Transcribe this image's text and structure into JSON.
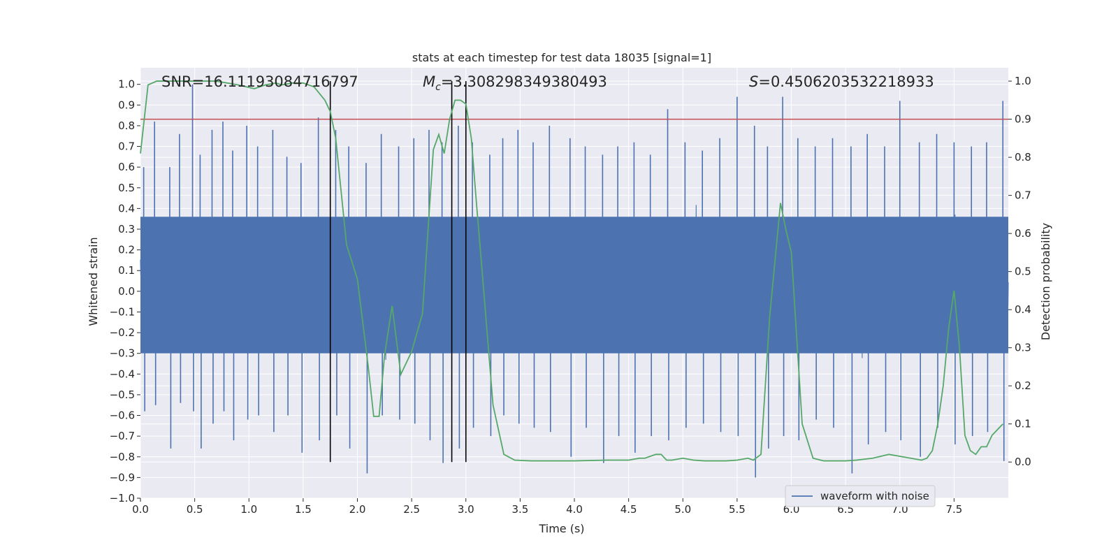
{
  "chart_data": {
    "type": "line",
    "title": "stats at each timestep for test data 18035 [signal=1]",
    "xlabel": "Time (s)",
    "ylabel": "Whitened strain",
    "ylabel_right": "Detection probability",
    "xlim": [
      0.0,
      8.0
    ],
    "ylim": [
      -1.0,
      1.08
    ],
    "ylim_right": [
      -0.095,
      1.035
    ],
    "x_ticks": [
      "0.0",
      "0.5",
      "1.0",
      "1.5",
      "2.0",
      "2.5",
      "3.0",
      "3.5",
      "4.0",
      "4.5",
      "5.0",
      "5.5",
      "6.0",
      "6.5",
      "7.0",
      "7.5"
    ],
    "y_ticks": [
      "1.0",
      "0.9",
      "0.8",
      "0.7",
      "0.6",
      "0.5",
      "0.4",
      "0.3",
      "0.2",
      "0.1",
      "0.0",
      "-0.1",
      "-0.2",
      "-0.3",
      "-0.4",
      "-0.5",
      "-0.6",
      "-0.7",
      "-0.8",
      "-0.9",
      "-1.0"
    ],
    "y_ticks_right": [
      "1.0",
      "0.9",
      "0.8",
      "0.7",
      "0.6",
      "0.5",
      "0.4",
      "0.3",
      "0.2",
      "0.1",
      "0.0"
    ],
    "annotations": {
      "snr": "SNR=16.11193084716797",
      "mc_symbol": "M",
      "mc_subscript": "c",
      "mc_value": "=3.308298349380493",
      "s_symbol": "S",
      "s_value": "=0.4506203532218933"
    },
    "threshold_line": {
      "y_right": 0.9,
      "color": "#c44e52"
    },
    "vertical_markers": [
      1.75,
      2.87,
      3.0
    ],
    "series": [
      {
        "name": "waveform with noise",
        "color": "#4c72b0",
        "axis": "left",
        "note": "dense noisy strain, approx. between -0.9 and 1.0 over 0-8 s",
        "peaks": [
          {
            "x": 0.03,
            "top": 0.6,
            "bottom": -0.58
          },
          {
            "x": 0.13,
            "top": 0.82,
            "bottom": -0.55
          },
          {
            "x": 0.27,
            "top": 0.6,
            "bottom": -0.76
          },
          {
            "x": 0.36,
            "top": 0.76,
            "bottom": -0.54
          },
          {
            "x": 0.48,
            "top": 1.0,
            "bottom": -0.58
          },
          {
            "x": 0.55,
            "top": 0.66,
            "bottom": -0.76
          },
          {
            "x": 0.66,
            "top": 0.78,
            "bottom": -0.64
          },
          {
            "x": 0.76,
            "top": 0.82,
            "bottom": -0.58
          },
          {
            "x": 0.85,
            "top": 0.68,
            "bottom": -0.72
          },
          {
            "x": 0.98,
            "top": 0.8,
            "bottom": -0.62
          },
          {
            "x": 1.08,
            "top": 0.7,
            "bottom": -0.6
          },
          {
            "x": 1.22,
            "top": 0.78,
            "bottom": -0.68
          },
          {
            "x": 1.35,
            "top": 0.65,
            "bottom": -0.6
          },
          {
            "x": 1.48,
            "top": 0.62,
            "bottom": -0.78
          },
          {
            "x": 1.64,
            "top": 0.84,
            "bottom": -0.72
          },
          {
            "x": 1.8,
            "top": 0.78,
            "bottom": -0.6
          },
          {
            "x": 1.92,
            "top": 0.7,
            "bottom": -0.76
          },
          {
            "x": 2.08,
            "top": 0.62,
            "bottom": -0.88
          },
          {
            "x": 2.22,
            "top": 0.76,
            "bottom": -0.6
          },
          {
            "x": 2.38,
            "top": 0.7,
            "bottom": -0.62
          },
          {
            "x": 2.52,
            "top": 0.74,
            "bottom": -0.64
          },
          {
            "x": 2.66,
            "top": 0.78,
            "bottom": -0.72
          },
          {
            "x": 2.78,
            "top": 0.72,
            "bottom": -0.83
          },
          {
            "x": 2.93,
            "top": 0.8,
            "bottom": -0.76
          },
          {
            "x": 3.06,
            "top": 0.72,
            "bottom": -0.66
          },
          {
            "x": 3.22,
            "top": 0.66,
            "bottom": -0.7
          },
          {
            "x": 3.34,
            "top": 0.74,
            "bottom": -0.6
          },
          {
            "x": 3.48,
            "top": 0.78,
            "bottom": -0.64
          },
          {
            "x": 3.62,
            "top": 0.72,
            "bottom": -0.66
          },
          {
            "x": 3.77,
            "top": 0.8,
            "bottom": -0.68
          },
          {
            "x": 3.96,
            "top": 0.74,
            "bottom": -0.8
          },
          {
            "x": 4.1,
            "top": 0.7,
            "bottom": -0.66
          },
          {
            "x": 4.26,
            "top": 0.66,
            "bottom": -0.83
          },
          {
            "x": 4.4,
            "top": 0.7,
            "bottom": -0.7
          },
          {
            "x": 4.55,
            "top": 0.72,
            "bottom": -0.78
          },
          {
            "x": 4.7,
            "top": 0.66,
            "bottom": -0.7
          },
          {
            "x": 4.86,
            "top": 0.88,
            "bottom": -0.72
          },
          {
            "x": 5.02,
            "top": 0.72,
            "bottom": -0.66
          },
          {
            "x": 5.18,
            "top": 0.68,
            "bottom": -0.64
          },
          {
            "x": 5.34,
            "top": 0.74,
            "bottom": -0.68
          },
          {
            "x": 5.5,
            "top": 0.94,
            "bottom": -0.7
          },
          {
            "x": 5.66,
            "top": 0.8,
            "bottom": -0.9
          },
          {
            "x": 5.78,
            "top": 0.7,
            "bottom": -0.76
          },
          {
            "x": 5.92,
            "top": 0.94,
            "bottom": -0.7
          },
          {
            "x": 6.06,
            "top": 0.74,
            "bottom": -0.72
          },
          {
            "x": 6.22,
            "top": 0.7,
            "bottom": -0.62
          },
          {
            "x": 6.38,
            "top": 0.74,
            "bottom": -0.66
          },
          {
            "x": 6.55,
            "top": 0.7,
            "bottom": -0.88
          },
          {
            "x": 6.7,
            "top": 0.76,
            "bottom": -0.74
          },
          {
            "x": 6.86,
            "top": 0.7,
            "bottom": -0.68
          },
          {
            "x": 7.0,
            "top": 0.92,
            "bottom": -0.72
          },
          {
            "x": 7.18,
            "top": 0.72,
            "bottom": -0.8
          },
          {
            "x": 7.34,
            "top": 0.76,
            "bottom": -0.66
          },
          {
            "x": 7.5,
            "top": 0.72,
            "bottom": -0.74
          },
          {
            "x": 7.66,
            "top": 0.7,
            "bottom": -0.7
          },
          {
            "x": 7.8,
            "top": 0.72,
            "bottom": -0.68
          },
          {
            "x": 7.95,
            "top": 0.92,
            "bottom": -0.82
          }
        ]
      },
      {
        "name": "detection probability",
        "color": "#55a868",
        "axis": "right",
        "x": [
          0.0,
          0.07,
          0.15,
          0.3,
          0.5,
          0.7,
          0.8,
          0.9,
          1.05,
          1.15,
          1.25,
          1.3,
          1.4,
          1.5,
          1.6,
          1.7,
          1.75,
          1.8,
          1.9,
          2.0,
          2.1,
          2.15,
          2.2,
          2.25,
          2.32,
          2.4,
          2.5,
          2.6,
          2.7,
          2.75,
          2.8,
          2.85,
          2.9,
          2.95,
          3.0,
          3.05,
          3.1,
          3.15,
          3.25,
          3.35,
          3.45,
          3.6,
          3.8,
          4.0,
          4.3,
          4.5,
          4.6,
          4.65,
          4.75,
          4.8,
          4.85,
          4.9,
          5.0,
          5.1,
          5.2,
          5.4,
          5.5,
          5.6,
          5.65,
          5.72,
          5.8,
          5.9,
          5.95,
          6.0,
          6.1,
          6.2,
          6.3,
          6.5,
          6.6,
          6.75,
          6.9,
          7.0,
          7.1,
          7.2,
          7.25,
          7.3,
          7.35,
          7.4,
          7.45,
          7.5,
          7.55,
          7.6,
          7.65,
          7.7,
          7.75,
          7.8,
          7.85,
          7.95
        ],
        "y": [
          0.81,
          0.99,
          1.0,
          1.0,
          1.0,
          1.0,
          0.995,
          0.99,
          0.98,
          0.99,
          0.995,
          0.99,
          0.995,
          0.995,
          0.985,
          0.95,
          0.92,
          0.85,
          0.57,
          0.48,
          0.25,
          0.12,
          0.12,
          0.28,
          0.41,
          0.23,
          0.29,
          0.39,
          0.82,
          0.86,
          0.81,
          0.9,
          0.95,
          0.95,
          0.94,
          0.85,
          0.67,
          0.5,
          0.15,
          0.02,
          0.005,
          0.003,
          0.003,
          0.003,
          0.005,
          0.005,
          0.01,
          0.01,
          0.02,
          0.02,
          0.005,
          0.005,
          0.01,
          0.005,
          0.003,
          0.003,
          0.005,
          0.01,
          0.005,
          0.02,
          0.38,
          0.68,
          0.61,
          0.55,
          0.1,
          0.01,
          0.003,
          0.003,
          0.005,
          0.01,
          0.02,
          0.015,
          0.01,
          0.005,
          0.01,
          0.03,
          0.1,
          0.2,
          0.35,
          0.45,
          0.3,
          0.07,
          0.03,
          0.02,
          0.04,
          0.04,
          0.07,
          0.1
        ]
      }
    ],
    "legend": {
      "entries": [
        "waveform with noise"
      ],
      "location": "bottom-right"
    }
  }
}
